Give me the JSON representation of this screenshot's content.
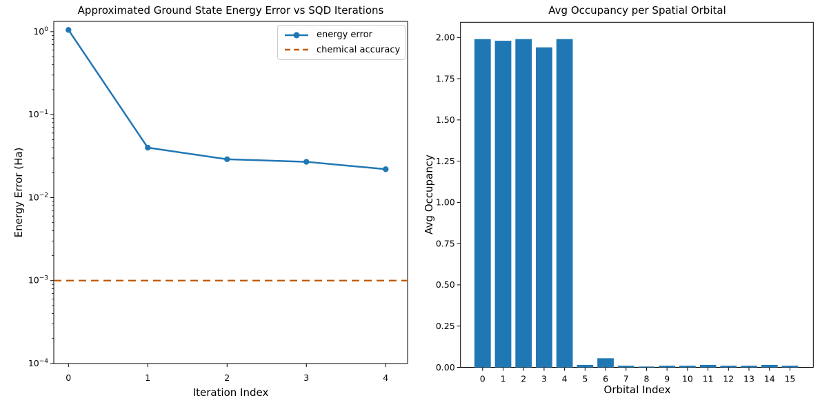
{
  "figure_bg": "#ffffff",
  "colors": {
    "axis": "#000000",
    "text": "#000000",
    "legend_border": "#cccccc",
    "series_blue": "#1f77b4",
    "accuracy_orange": "#BF5700"
  },
  "chart_data": [
    {
      "type": "line",
      "title": "Approximated Ground State Energy Error vs SQD Iterations",
      "xlabel": "Iteration Index",
      "ylabel": "Energy Error (Ha)",
      "yscale": "log",
      "grid": false,
      "x": [
        0,
        1,
        2,
        3,
        4
      ],
      "series": [
        {
          "name": "energy error",
          "values": [
            1.05,
            0.04,
            0.029,
            0.027,
            0.022
          ],
          "color": "#1f77b4",
          "marker": "circle",
          "style": "solid"
        }
      ],
      "reference_line": {
        "name": "chemical accuracy",
        "value": 0.001,
        "color": "#BF5700",
        "style": "dashed"
      },
      "xlim": [
        -0.185,
        4.276
      ],
      "ylim": [
        0.0001,
        1.33
      ],
      "xtick_values": [
        0,
        1,
        2,
        3,
        4
      ],
      "xtick_labels": [
        "0",
        "1",
        "2",
        "3",
        "4"
      ],
      "ytick_exponents": [
        0,
        -1,
        -2,
        -3,
        -4
      ],
      "legend": {
        "position": "upper right",
        "entries": [
          "energy error",
          "chemical accuracy"
        ]
      }
    },
    {
      "type": "bar",
      "title": "Avg Occupancy per Spatial Orbital",
      "xlabel": "Orbital Index",
      "ylabel": "Avg Occupancy",
      "grid": false,
      "categories": [
        "0",
        "1",
        "2",
        "3",
        "4",
        "5",
        "6",
        "7",
        "8",
        "9",
        "10",
        "11",
        "12",
        "13",
        "14",
        "15"
      ],
      "values": [
        1.99,
        1.98,
        1.99,
        1.94,
        1.99,
        0.015,
        0.055,
        0.01,
        0.005,
        0.01,
        0.01,
        0.015,
        0.01,
        0.01,
        0.015,
        0.01
      ],
      "bar_color": "#1f77b4",
      "bar_width": 0.8,
      "xlim": [
        -1.08,
        16.14
      ],
      "ylim": [
        0,
        2.092
      ],
      "ytick_values": [
        0,
        0.25,
        0.5,
        0.75,
        1.0,
        1.25,
        1.5,
        1.75,
        2.0
      ],
      "ytick_labels": [
        "0.00",
        "0.25",
        "0.50",
        "0.75",
        "1.00",
        "1.25",
        "1.50",
        "1.75",
        "2.00"
      ]
    }
  ]
}
